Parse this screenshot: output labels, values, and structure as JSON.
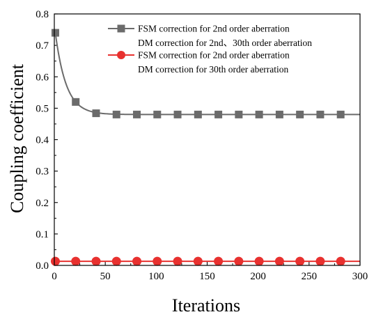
{
  "chart_data": {
    "type": "line",
    "xlabel": "Iterations",
    "ylabel": "Coupling coefficient",
    "xlim": [
      0,
      300
    ],
    "ylim": [
      0.0,
      0.8
    ],
    "x_ticks": [
      "0",
      "50",
      "100",
      "150",
      "200",
      "250",
      "300"
    ],
    "y_ticks": [
      "0.0",
      "0.1",
      "0.2",
      "0.3",
      "0.4",
      "0.5",
      "0.6",
      "0.7",
      "0.8"
    ],
    "legend_position": "top-right",
    "grid": false,
    "series": [
      {
        "name_line1": "FSM correction for 2nd order aberration",
        "name_line2": "DM correction for 2nd、30th order aberration",
        "color": "#6b6b6b",
        "marker": "square",
        "x": [
          1,
          21,
          41,
          61,
          81,
          101,
          121,
          141,
          161,
          181,
          201,
          221,
          241,
          261,
          281
        ],
        "y": [
          0.74,
          0.52,
          0.484,
          0.48,
          0.48,
          0.48,
          0.48,
          0.48,
          0.48,
          0.48,
          0.48,
          0.48,
          0.48,
          0.48,
          0.48
        ]
      },
      {
        "name_line1": "FSM correction for 2nd order aberration",
        "name_line2": "DM correction for 30th order aberration",
        "color": "#e8312f",
        "marker": "circle",
        "x": [
          1,
          21,
          41,
          61,
          81,
          101,
          121,
          141,
          161,
          181,
          201,
          221,
          241,
          261,
          281
        ],
        "y": [
          0.013,
          0.013,
          0.013,
          0.013,
          0.013,
          0.013,
          0.013,
          0.013,
          0.013,
          0.013,
          0.013,
          0.013,
          0.013,
          0.013,
          0.013
        ]
      }
    ]
  }
}
